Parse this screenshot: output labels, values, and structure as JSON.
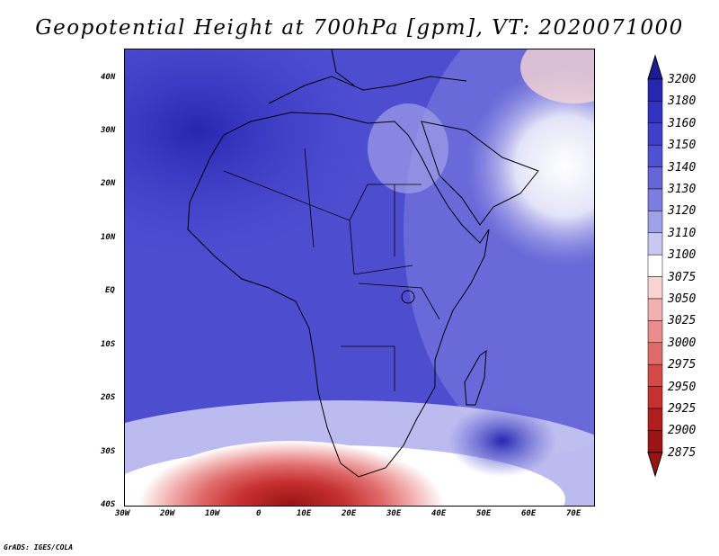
{
  "title": "Geopotential Height at 700hPa [gpm], VT: 2020071000",
  "footer": "GrADS: IGES/COLA",
  "lat_labels": [
    "40N",
    "30N",
    "20N",
    "10N",
    "EQ",
    "10S",
    "20S",
    "30S",
    "40S"
  ],
  "lon_labels": [
    "30W",
    "20W",
    "10W",
    "0",
    "10E",
    "20E",
    "30E",
    "40E",
    "50E",
    "60E",
    "70E"
  ],
  "colorbar": {
    "levels": [
      "3200",
      "3180",
      "3160",
      "3150",
      "3140",
      "3130",
      "3120",
      "3110",
      "3100",
      "3075",
      "3050",
      "3025",
      "3000",
      "2975",
      "2950",
      "2925",
      "2900",
      "2875"
    ],
    "colors": [
      "#1c1c96",
      "#2626b0",
      "#3232c2",
      "#3f3fcc",
      "#5050d2",
      "#6565d8",
      "#7d7ddf",
      "#a0a0e8",
      "#c8c8f2",
      "#ffffff",
      "#f8d4d4",
      "#f2b0b0",
      "#ea8c8c",
      "#e06a6a",
      "#d44848",
      "#c63030",
      "#b21e1e",
      "#9a1414"
    ]
  }
}
